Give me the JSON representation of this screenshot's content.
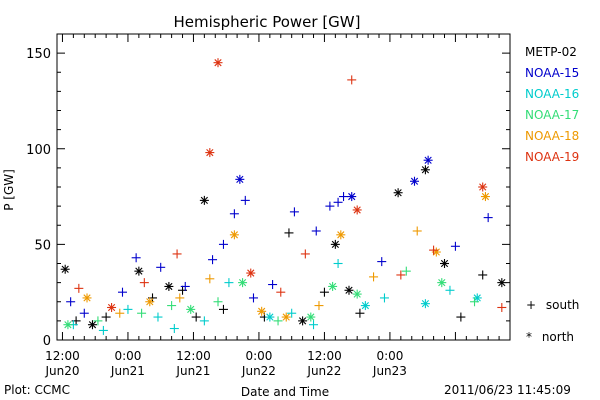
{
  "chart_data": {
    "type": "scatter",
    "title": "Hemispheric Power [GW]",
    "xlabel": "Date and Time",
    "ylabel": "P [GW]",
    "ylim": [
      0,
      160
    ],
    "xlim": [
      "2011-06-20T11:00",
      "2011-06-23T22:00"
    ],
    "y_ticks": [
      0,
      50,
      100,
      150
    ],
    "x_ticks": [
      {
        "t": "2011-06-20T12:00",
        "line1": "12:00",
        "line2": "Jun20"
      },
      {
        "t": "2011-06-21T00:00",
        "line1": "0:00",
        "line2": "Jun21"
      },
      {
        "t": "2011-06-21T12:00",
        "line1": "12:00",
        "line2": "Jun21"
      },
      {
        "t": "2011-06-22T00:00",
        "line1": "0:00",
        "line2": "Jun22"
      },
      {
        "t": "2011-06-22T12:00",
        "line1": "12:00",
        "line2": "Jun22"
      },
      {
        "t": "2011-06-23T00:00",
        "line1": "0:00",
        "line2": "Jun23"
      }
    ],
    "legend_placement": "right",
    "series": [
      {
        "name": "METP-02",
        "color": "#000000",
        "points": [
          {
            "t": "2011-06-20T12:30",
            "y": 37,
            "m": "north"
          },
          {
            "t": "2011-06-20T14:30",
            "y": 10,
            "m": "south"
          },
          {
            "t": "2011-06-20T17:30",
            "y": 8,
            "m": "north"
          },
          {
            "t": "2011-06-20T20:00",
            "y": 12,
            "m": "south"
          },
          {
            "t": "2011-06-21T02:00",
            "y": 36,
            "m": "north"
          },
          {
            "t": "2011-06-21T04:30",
            "y": 22,
            "m": "south"
          },
          {
            "t": "2011-06-21T07:30",
            "y": 28,
            "m": "north"
          },
          {
            "t": "2011-06-21T10:00",
            "y": 26,
            "m": "south"
          },
          {
            "t": "2011-06-21T12:30",
            "y": 12,
            "m": "south"
          },
          {
            "t": "2011-06-21T14:00",
            "y": 73,
            "m": "north"
          },
          {
            "t": "2011-06-21T17:30",
            "y": 16,
            "m": "south"
          },
          {
            "t": "2011-06-22T01:00",
            "y": 12,
            "m": "south"
          },
          {
            "t": "2011-06-22T05:30",
            "y": 56,
            "m": "south"
          },
          {
            "t": "2011-06-22T08:00",
            "y": 10,
            "m": "north"
          },
          {
            "t": "2011-06-22T12:00",
            "y": 25,
            "m": "south"
          },
          {
            "t": "2011-06-22T14:00",
            "y": 50,
            "m": "north"
          },
          {
            "t": "2011-06-22T16:30",
            "y": 26,
            "m": "north"
          },
          {
            "t": "2011-06-22T18:30",
            "y": 14,
            "m": "south"
          },
          {
            "t": "2011-06-23T01:30",
            "y": 77,
            "m": "north"
          },
          {
            "t": "2011-06-23T06:30",
            "y": 89,
            "m": "north"
          },
          {
            "t": "2011-06-23T10:00",
            "y": 40,
            "m": "north"
          },
          {
            "t": "2011-06-23T13:00",
            "y": 12,
            "m": "south"
          },
          {
            "t": "2011-06-23T17:00",
            "y": 34,
            "m": "south"
          },
          {
            "t": "2011-06-23T20:30",
            "y": 30,
            "m": "north"
          }
        ]
      },
      {
        "name": "NOAA-15",
        "color": "#0000cc",
        "points": [
          {
            "t": "2011-06-20T13:30",
            "y": 20,
            "m": "south"
          },
          {
            "t": "2011-06-20T16:00",
            "y": 14,
            "m": "south"
          },
          {
            "t": "2011-06-20T23:00",
            "y": 25,
            "m": "south"
          },
          {
            "t": "2011-06-21T01:30",
            "y": 43,
            "m": "south"
          },
          {
            "t": "2011-06-21T06:00",
            "y": 38,
            "m": "south"
          },
          {
            "t": "2011-06-21T10:30",
            "y": 28,
            "m": "south"
          },
          {
            "t": "2011-06-21T15:30",
            "y": 42,
            "m": "south"
          },
          {
            "t": "2011-06-21T17:30",
            "y": 50,
            "m": "south"
          },
          {
            "t": "2011-06-21T19:30",
            "y": 66,
            "m": "south"
          },
          {
            "t": "2011-06-21T20:30",
            "y": 84,
            "m": "north"
          },
          {
            "t": "2011-06-21T21:30",
            "y": 73,
            "m": "south"
          },
          {
            "t": "2011-06-21T23:00",
            "y": 22,
            "m": "south"
          },
          {
            "t": "2011-06-22T02:30",
            "y": 29,
            "m": "south"
          },
          {
            "t": "2011-06-22T06:30",
            "y": 67,
            "m": "south"
          },
          {
            "t": "2011-06-22T10:30",
            "y": 57,
            "m": "south"
          },
          {
            "t": "2011-06-22T13:00",
            "y": 70,
            "m": "south"
          },
          {
            "t": "2011-06-22T14:30",
            "y": 72,
            "m": "south"
          },
          {
            "t": "2011-06-22T15:30",
            "y": 75,
            "m": "south"
          },
          {
            "t": "2011-06-22T17:00",
            "y": 75,
            "m": "north"
          },
          {
            "t": "2011-06-22T22:30",
            "y": 41,
            "m": "south"
          },
          {
            "t": "2011-06-23T04:30",
            "y": 83,
            "m": "north"
          },
          {
            "t": "2011-06-23T07:00",
            "y": 94,
            "m": "north"
          },
          {
            "t": "2011-06-23T12:00",
            "y": 49,
            "m": "south"
          },
          {
            "t": "2011-06-23T18:00",
            "y": 64,
            "m": "south"
          }
        ]
      },
      {
        "name": "NOAA-16",
        "color": "#00cccc",
        "points": [
          {
            "t": "2011-06-20T14:00",
            "y": 8,
            "m": "south"
          },
          {
            "t": "2011-06-20T19:30",
            "y": 5,
            "m": "south"
          },
          {
            "t": "2011-06-21T00:00",
            "y": 16,
            "m": "south"
          },
          {
            "t": "2011-06-21T05:30",
            "y": 12,
            "m": "south"
          },
          {
            "t": "2011-06-21T08:30",
            "y": 6,
            "m": "south"
          },
          {
            "t": "2011-06-21T14:00",
            "y": 10,
            "m": "south"
          },
          {
            "t": "2011-06-21T18:30",
            "y": 30,
            "m": "south"
          },
          {
            "t": "2011-06-22T02:00",
            "y": 12,
            "m": "north"
          },
          {
            "t": "2011-06-22T06:00",
            "y": 14,
            "m": "south"
          },
          {
            "t": "2011-06-22T10:00",
            "y": 8,
            "m": "south"
          },
          {
            "t": "2011-06-22T14:30",
            "y": 40,
            "m": "south"
          },
          {
            "t": "2011-06-22T19:30",
            "y": 18,
            "m": "north"
          },
          {
            "t": "2011-06-22T23:00",
            "y": 22,
            "m": "south"
          },
          {
            "t": "2011-06-23T06:30",
            "y": 19,
            "m": "north"
          },
          {
            "t": "2011-06-23T11:00",
            "y": 26,
            "m": "south"
          },
          {
            "t": "2011-06-23T16:00",
            "y": 22,
            "m": "north"
          }
        ]
      },
      {
        "name": "NOAA-17",
        "color": "#33dd77",
        "points": [
          {
            "t": "2011-06-20T13:00",
            "y": 8,
            "m": "north"
          },
          {
            "t": "2011-06-20T18:30",
            "y": 10,
            "m": "south"
          },
          {
            "t": "2011-06-21T02:30",
            "y": 14,
            "m": "south"
          },
          {
            "t": "2011-06-21T08:00",
            "y": 18,
            "m": "south"
          },
          {
            "t": "2011-06-21T11:30",
            "y": 16,
            "m": "north"
          },
          {
            "t": "2011-06-21T16:30",
            "y": 20,
            "m": "south"
          },
          {
            "t": "2011-06-21T21:00",
            "y": 30,
            "m": "north"
          },
          {
            "t": "2011-06-22T03:30",
            "y": 10,
            "m": "south"
          },
          {
            "t": "2011-06-22T09:30",
            "y": 12,
            "m": "north"
          },
          {
            "t": "2011-06-22T13:30",
            "y": 28,
            "m": "north"
          },
          {
            "t": "2011-06-22T18:00",
            "y": 24,
            "m": "north"
          },
          {
            "t": "2011-06-23T03:00",
            "y": 36,
            "m": "south"
          },
          {
            "t": "2011-06-23T09:30",
            "y": 30,
            "m": "north"
          },
          {
            "t": "2011-06-23T15:30",
            "y": 20,
            "m": "south"
          }
        ]
      },
      {
        "name": "NOAA-18",
        "color": "#ee9900",
        "points": [
          {
            "t": "2011-06-20T16:30",
            "y": 22,
            "m": "north"
          },
          {
            "t": "2011-06-20T22:30",
            "y": 14,
            "m": "south"
          },
          {
            "t": "2011-06-21T04:00",
            "y": 20,
            "m": "north"
          },
          {
            "t": "2011-06-21T09:30",
            "y": 22,
            "m": "south"
          },
          {
            "t": "2011-06-21T15:00",
            "y": 32,
            "m": "south"
          },
          {
            "t": "2011-06-21T19:30",
            "y": 55,
            "m": "north"
          },
          {
            "t": "2011-06-22T00:30",
            "y": 15,
            "m": "north"
          },
          {
            "t": "2011-06-22T05:00",
            "y": 12,
            "m": "north"
          },
          {
            "t": "2011-06-22T11:00",
            "y": 18,
            "m": "south"
          },
          {
            "t": "2011-06-22T15:00",
            "y": 55,
            "m": "north"
          },
          {
            "t": "2011-06-22T21:00",
            "y": 33,
            "m": "south"
          },
          {
            "t": "2011-06-23T05:00",
            "y": 57,
            "m": "south"
          },
          {
            "t": "2011-06-23T08:30",
            "y": 46,
            "m": "north"
          },
          {
            "t": "2011-06-23T17:30",
            "y": 75,
            "m": "north"
          }
        ]
      },
      {
        "name": "NOAA-19",
        "color": "#dd3311",
        "points": [
          {
            "t": "2011-06-20T15:00",
            "y": 27,
            "m": "south"
          },
          {
            "t": "2011-06-20T21:00",
            "y": 17,
            "m": "north"
          },
          {
            "t": "2011-06-21T03:00",
            "y": 30,
            "m": "south"
          },
          {
            "t": "2011-06-21T09:00",
            "y": 45,
            "m": "south"
          },
          {
            "t": "2011-06-21T15:00",
            "y": 98,
            "m": "north"
          },
          {
            "t": "2011-06-21T16:30",
            "y": 145,
            "m": "north"
          },
          {
            "t": "2011-06-21T22:30",
            "y": 35,
            "m": "north"
          },
          {
            "t": "2011-06-22T04:00",
            "y": 25,
            "m": "south"
          },
          {
            "t": "2011-06-22T08:30",
            "y": 45,
            "m": "south"
          },
          {
            "t": "2011-06-22T17:00",
            "y": 136,
            "m": "south"
          },
          {
            "t": "2011-06-22T18:00",
            "y": 68,
            "m": "north"
          },
          {
            "t": "2011-06-23T02:00",
            "y": 34,
            "m": "south"
          },
          {
            "t": "2011-06-23T08:00",
            "y": 47,
            "m": "south"
          },
          {
            "t": "2011-06-23T17:00",
            "y": 80,
            "m": "north"
          },
          {
            "t": "2011-06-23T20:30",
            "y": 17,
            "m": "south"
          }
        ]
      }
    ]
  },
  "legend": {
    "south_label": "south",
    "north_label": "north",
    "south_symbol": "+",
    "north_symbol": "*"
  },
  "footer": {
    "plot_source": "Plot: CCMC",
    "timestamp": "2011/06/23 11:45:09"
  }
}
